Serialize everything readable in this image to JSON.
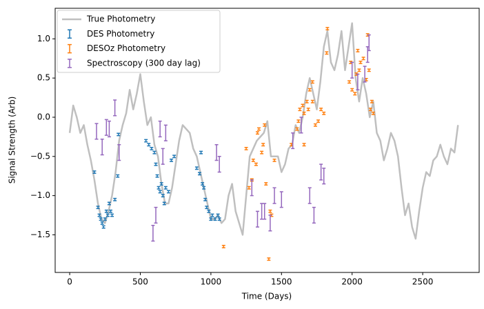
{
  "chart_data": {
    "type": "errorbar",
    "x_label": "Time (Days)",
    "y_label": "Signal Strength (Arb)",
    "xlim": [
      -103,
      2900
    ],
    "ylim": [
      -1.98,
      1.39
    ],
    "xticks": [
      0,
      500,
      1000,
      1500,
      2000,
      2500
    ],
    "yticks": [
      {
        "value": -1.5,
        "label": "−1.5"
      },
      {
        "value": -1,
        "label": "−1.0"
      },
      {
        "value": -0.5,
        "label": "−0.5"
      },
      {
        "value": 0,
        "label": "0.0"
      },
      {
        "value": 0.5,
        "label": "0.5"
      },
      {
        "value": 1,
        "label": "1.0"
      }
    ],
    "legend": "upper left",
    "series": [
      {
        "name": "True Photometry",
        "kind": "line",
        "color": "#bfbfbf",
        "x": [
          0,
          25,
          50,
          75,
          100,
          125,
          150,
          175,
          200,
          225,
          250,
          275,
          300,
          325,
          350,
          375,
          400,
          425,
          450,
          475,
          500,
          525,
          550,
          575,
          600,
          625,
          650,
          675,
          700,
          725,
          750,
          775,
          800,
          825,
          850,
          875,
          900,
          925,
          950,
          975,
          1000,
          1025,
          1050,
          1075,
          1100,
          1125,
          1150,
          1175,
          1200,
          1225,
          1250,
          1275,
          1300,
          1325,
          1350,
          1375,
          1400,
          1425,
          1450,
          1475,
          1500,
          1525,
          1550,
          1575,
          1600,
          1625,
          1650,
          1675,
          1700,
          1725,
          1750,
          1775,
          1800,
          1825,
          1850,
          1875,
          1900,
          1925,
          1950,
          1975,
          2000,
          2025,
          2050,
          2075,
          2100,
          2125,
          2150,
          2175,
          2200,
          2225,
          2250,
          2275,
          2300,
          2325,
          2350,
          2375,
          2400,
          2425,
          2450,
          2475,
          2500,
          2525,
          2550,
          2575,
          2600,
          2625,
          2650,
          2675,
          2700,
          2725,
          2750
        ],
        "values": [
          -0.2,
          0.15,
          0.0,
          -0.2,
          -0.1,
          -0.35,
          -0.55,
          -0.8,
          -1.1,
          -1.3,
          -1.35,
          -1.2,
          -1.0,
          -0.7,
          -0.3,
          -0.1,
          0.05,
          0.35,
          0.1,
          0.3,
          0.55,
          0.2,
          -0.1,
          0.0,
          -0.35,
          -0.5,
          -0.85,
          -1.1,
          -1.1,
          -0.9,
          -0.6,
          -0.3,
          -0.1,
          -0.15,
          -0.2,
          -0.4,
          -0.5,
          -0.7,
          -0.9,
          -1.1,
          -1.3,
          -1.3,
          -1.25,
          -1.35,
          -1.3,
          -1.0,
          -0.85,
          -1.2,
          -1.35,
          -1.5,
          -1.0,
          -0.5,
          -0.4,
          -0.3,
          -0.25,
          -0.2,
          -0.05,
          -0.5,
          -0.5,
          -0.5,
          -0.7,
          -0.6,
          -0.4,
          -0.35,
          -0.1,
          -0.2,
          0.0,
          0.3,
          0.5,
          0.3,
          0.1,
          0.45,
          0.9,
          1.1,
          0.7,
          0.6,
          0.8,
          1.1,
          0.6,
          0.9,
          1.2,
          0.5,
          0.2,
          0.5,
          0.3,
          0.0,
          0.2,
          -0.2,
          -0.3,
          -0.55,
          -0.4,
          -0.2,
          -0.3,
          -0.5,
          -0.9,
          -1.25,
          -1.1,
          -1.4,
          -1.55,
          -1.2,
          -0.9,
          -0.7,
          -0.75,
          -0.55,
          -0.5,
          -0.35,
          -0.5,
          -0.6,
          -0.4,
          -0.45,
          -0.1
        ]
      },
      {
        "name": "DES Photometry",
        "kind": "errorbar",
        "color": "#1f77b4",
        "error": 0.015,
        "x": [
          175,
          200,
          210,
          220,
          230,
          240,
          250,
          260,
          270,
          280,
          290,
          300,
          320,
          340,
          345,
          540,
          560,
          580,
          600,
          610,
          620,
          630,
          640,
          650,
          660,
          670,
          680,
          700,
          720,
          740,
          900,
          920,
          930,
          940,
          950,
          960,
          970,
          985,
          1000,
          1010,
          1030,
          1050,
          1060
        ],
        "values": [
          -0.7,
          -1.15,
          -1.25,
          -1.3,
          -1.35,
          -1.4,
          -1.3,
          -1.2,
          -1.25,
          -1.1,
          -1.2,
          -1.25,
          -1.05,
          -0.75,
          -0.22,
          -0.3,
          -0.35,
          -0.4,
          -0.45,
          -0.6,
          -0.75,
          -0.9,
          -0.95,
          -0.85,
          -1.0,
          -1.1,
          -0.9,
          -0.95,
          -0.55,
          -0.5,
          -0.65,
          -0.72,
          -0.45,
          -0.85,
          -0.9,
          -1.05,
          -1.15,
          -1.2,
          -1.3,
          -1.25,
          -1.3,
          -1.25,
          -1.3
        ]
      },
      {
        "name": "DESOz Photometry",
        "kind": "errorbar",
        "color": "#ff7f0e",
        "error": 0.015,
        "x": [
          1090,
          1250,
          1270,
          1290,
          1300,
          1320,
          1330,
          1340,
          1360,
          1370,
          1380,
          1390,
          1410,
          1420,
          1430,
          1450,
          1570,
          1610,
          1620,
          1630,
          1650,
          1660,
          1660,
          1680,
          1690,
          1700,
          1720,
          1720,
          1740,
          1760,
          1780,
          1800,
          1820,
          1825,
          1980,
          1990,
          2000,
          2020,
          2030,
          2040,
          2050,
          2060,
          2080,
          2100,
          2110,
          2120,
          2130,
          2140,
          2150
        ],
        "values": [
          -1.65,
          -0.4,
          -0.9,
          -0.8,
          -0.55,
          -0.6,
          -0.2,
          -0.15,
          -0.45,
          -0.35,
          -0.1,
          -0.85,
          -1.81,
          -1.2,
          -1.25,
          -0.55,
          -0.35,
          -0.15,
          -0.05,
          0.1,
          0.15,
          0.05,
          -0.35,
          0.2,
          0.1,
          0.35,
          0.2,
          0.45,
          -0.1,
          -0.05,
          0.1,
          0.05,
          0.82,
          1.13,
          0.45,
          0.7,
          0.35,
          0.3,
          0.55,
          0.85,
          0.6,
          0.7,
          0.75,
          0.48,
          1.05,
          0.6,
          0.1,
          0.2,
          0.05
        ]
      },
      {
        "name": "Spectroscopy (300 day lag)",
        "kind": "errorbar",
        "color": "#9467bd",
        "error": 0.1,
        "x": [
          190,
          230,
          260,
          280,
          320,
          350,
          590,
          610,
          640,
          660,
          680,
          1040,
          1060,
          1290,
          1330,
          1360,
          1380,
          1420,
          1450,
          1500,
          1580,
          1640,
          1700,
          1730,
          1780,
          1800,
          2000,
          2040,
          2090,
          2110,
          2120
        ],
        "values": [
          -0.18,
          -0.38,
          -0.13,
          -0.15,
          0.12,
          -0.45,
          -1.48,
          -1.25,
          -0.15,
          -0.5,
          -0.2,
          -0.45,
          -0.6,
          -0.9,
          -1.3,
          -1.2,
          -1.2,
          -1.35,
          -1.0,
          -1.05,
          -0.3,
          -0.1,
          -1.0,
          -1.25,
          -0.7,
          -0.75,
          0.6,
          0.45,
          0.55,
          0.8,
          0.95
        ]
      }
    ]
  }
}
